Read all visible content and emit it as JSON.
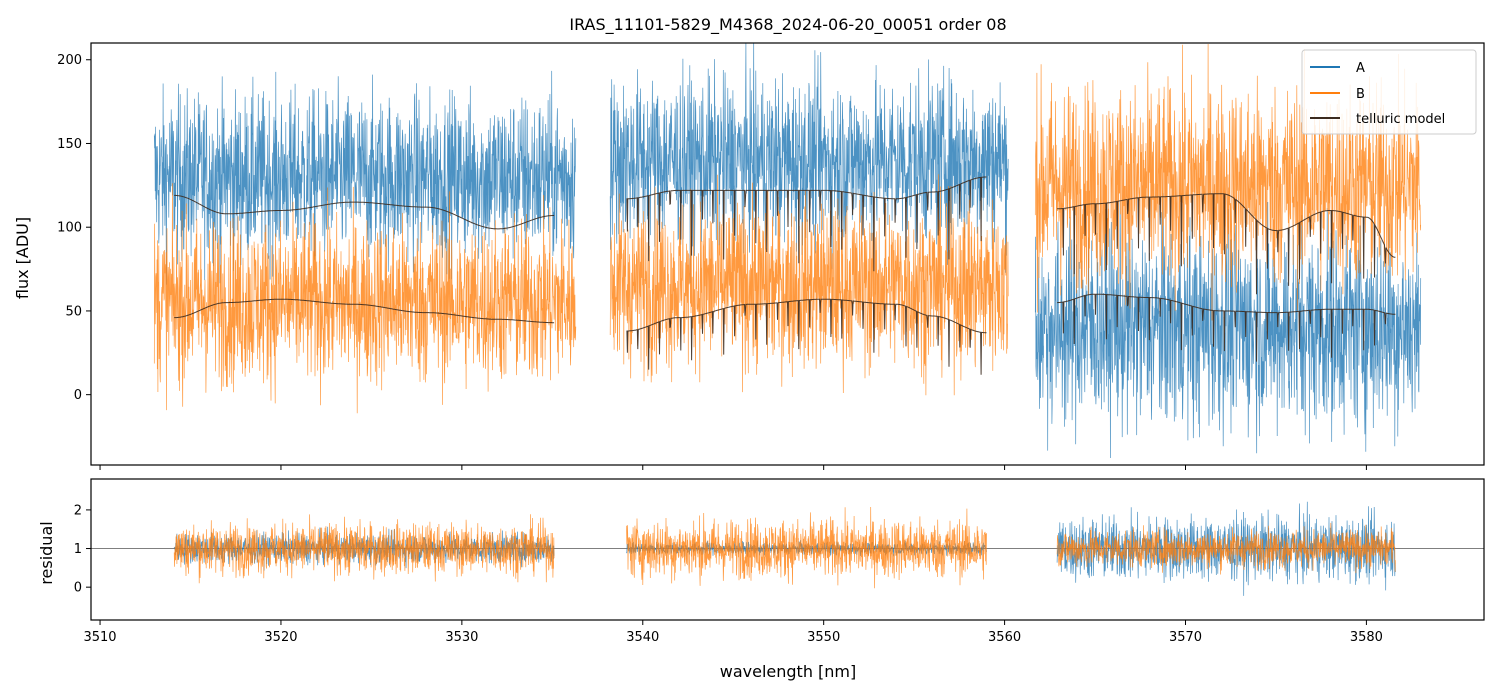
{
  "colors": {
    "A": "#1f77b4",
    "B": "#ff7f0e",
    "model": "#3b2a1e",
    "residual_line": "#555555"
  },
  "chart_data": [
    {
      "type": "line",
      "panel": "main",
      "title": "IRAS_11101-5829_M4368_2024-06-20_00051  order 08",
      "xlabel": "",
      "ylabel": "flux [ADU]",
      "xlim": [
        3509.5,
        3586.5
      ],
      "ylim": [
        -42,
        210
      ],
      "x_ticks": [
        3510,
        3520,
        3530,
        3540,
        3550,
        3560,
        3570,
        3580
      ],
      "y_ticks": [
        0,
        50,
        100,
        150,
        200
      ],
      "y_tick_labels": [
        "0",
        "50",
        "100",
        "150",
        "200"
      ],
      "legend": {
        "position": "top-right",
        "entries": [
          "A",
          "B",
          "telluric model"
        ]
      },
      "segments": [
        {
          "x_range": [
            3513.0,
            3536.3
          ],
          "A_level": 130,
          "A_noise": 45,
          "B_level": 55,
          "B_noise": 45,
          "model_A": {
            "x": [
              3514.1,
              3517,
              3520,
              3524,
              3528,
              3532,
              3535.1
            ],
            "y": [
              119,
              108,
              110,
              115,
              112,
              99,
              107
            ]
          },
          "model_B": {
            "x": [
              3514.1,
              3517,
              3520,
              3524,
              3528,
              3532,
              3535.1
            ],
            "y": [
              46,
              55,
              57,
              54,
              49,
              45,
              43
            ]
          }
        },
        {
          "x_range": [
            3538.2,
            3560.2
          ],
          "A_level": 140,
          "A_noise": 45,
          "B_level": 65,
          "B_noise": 45,
          "model_A": {
            "x": [
              3539.1,
              3542,
              3546,
              3550,
              3554,
              3556,
              3559.0
            ],
            "y": [
              117,
              122,
              122,
              122,
              117,
              121,
              130
            ]
          },
          "model_B": {
            "x": [
              3539.1,
              3542,
              3546,
              3550,
              3554,
              3556,
              3559.0
            ],
            "y": [
              38,
              46,
              54,
              57,
              54,
              47,
              37
            ]
          }
        },
        {
          "x_range": [
            3561.7,
            3583.0
          ],
          "A_level": 40,
          "A_noise": 55,
          "B_level": 125,
          "B_noise": 55,
          "model_A": {
            "x": [
              3562.9,
              3565,
              3568,
              3572,
              3575,
              3578,
              3580,
              3581.6
            ],
            "y": [
              111,
              114,
              118,
              120,
              98,
              110,
              106,
              82
            ]
          },
          "model_B": {
            "x": [
              3562.9,
              3565,
              3568,
              3572,
              3575,
              3578,
              3580,
              3581.6
            ],
            "y": [
              55,
              60,
              58,
              50,
              49,
              51,
              51,
              48
            ]
          }
        }
      ]
    },
    {
      "type": "line",
      "panel": "residual",
      "title": "",
      "xlabel": "wavelength [nm]",
      "ylabel": "residual",
      "xlim": [
        3509.5,
        3586.5
      ],
      "ylim": [
        -0.85,
        2.8
      ],
      "x_ticks": [
        3510,
        3520,
        3530,
        3540,
        3550,
        3560,
        3570,
        3580
      ],
      "x_tick_labels": [
        "3510",
        "3520",
        "3530",
        "3540",
        "3550",
        "3560",
        "3570",
        "3580"
      ],
      "y_ticks": [
        0,
        1,
        2
      ],
      "y_tick_labels": [
        "0",
        "1",
        "2"
      ],
      "reference_line": 1,
      "segments": [
        {
          "x_range": [
            3514.1,
            3535.1
          ],
          "A_noise": 0.35,
          "B_noise": 0.6
        },
        {
          "x_range": [
            3539.1,
            3559.0
          ],
          "A_noise": 0.15,
          "B_noise": 0.7
        },
        {
          "x_range": [
            3562.9,
            3581.6
          ],
          "A_noise": 0.75,
          "B_noise": 0.45
        }
      ]
    }
  ]
}
